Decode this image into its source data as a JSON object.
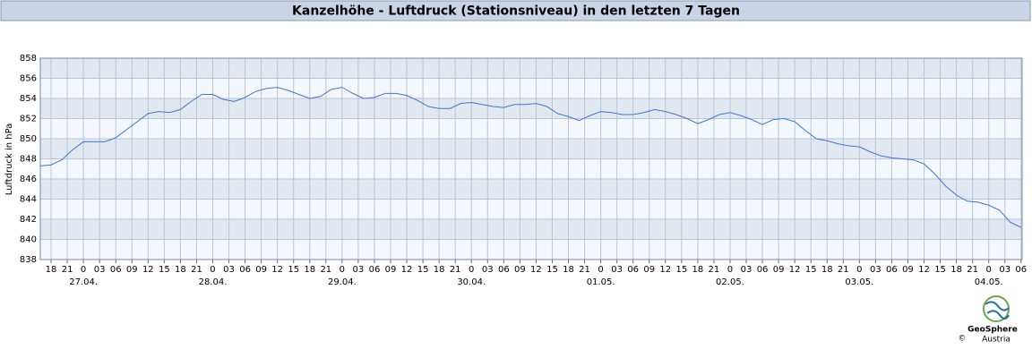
{
  "chart_data": {
    "type": "line",
    "title": "Kanzelhöhe - Luftdruck (Stationsniveau) in den letzten 7 Tagen",
    "ylabel": "Luftdruck in hPa",
    "color": "#3c78d8",
    "x": [
      -8,
      -6,
      -4,
      -2,
      0,
      2,
      4,
      6,
      8,
      10,
      12,
      14,
      16,
      18,
      20,
      22,
      24,
      26,
      28,
      30,
      32,
      34,
      36,
      38,
      40,
      42,
      44,
      46,
      48,
      50,
      52,
      54,
      56,
      58,
      60,
      62,
      64,
      66,
      68,
      70,
      72,
      74,
      76,
      78,
      80,
      82,
      84,
      86,
      88,
      90,
      92,
      94,
      96,
      98,
      100,
      102,
      104,
      106,
      108,
      110,
      112,
      114,
      116,
      118,
      120,
      122,
      124,
      126,
      128,
      130,
      132,
      134,
      136,
      138,
      140,
      142,
      144,
      146,
      148,
      150,
      152,
      154,
      156,
      158,
      160,
      162,
      164,
      166,
      168,
      170,
      172,
      174
    ],
    "values": [
      847.3,
      847.4,
      847.9,
      848.9,
      849.7,
      849.7,
      849.7,
      850.1,
      850.9,
      851.7,
      852.5,
      852.7,
      852.6,
      852.9,
      853.7,
      854.4,
      854.4,
      853.9,
      853.7,
      854.1,
      854.7,
      855.0,
      855.1,
      854.8,
      854.4,
      854.0,
      854.2,
      854.9,
      855.1,
      854.5,
      854.0,
      854.1,
      854.5,
      854.5,
      854.3,
      853.8,
      853.2,
      853.0,
      853.0,
      853.5,
      853.6,
      853.4,
      853.2,
      853.1,
      853.4,
      853.4,
      853.5,
      853.2,
      852.5,
      852.2,
      851.8,
      852.3,
      852.7,
      852.6,
      852.4,
      852.4,
      852.6,
      852.9,
      852.7,
      852.4,
      852.0,
      851.5,
      851.9,
      852.4,
      852.6,
      852.3,
      851.9,
      851.4,
      851.9,
      852.0,
      851.7,
      850.8,
      850.0,
      849.8,
      849.5,
      849.3,
      849.2,
      848.7,
      848.3,
      848.1,
      848.0,
      847.9,
      847.5,
      846.5,
      845.3,
      844.4,
      843.8,
      843.7,
      843.4,
      842.9,
      841.7,
      841.2
    ],
    "xlim": [
      -8,
      174.2
    ],
    "ylim": [
      838,
      858
    ],
    "yticks": [
      838,
      840,
      842,
      844,
      846,
      848,
      850,
      852,
      854,
      856,
      858
    ],
    "xticks": [
      {
        "value": -6,
        "label": "18"
      },
      {
        "value": -3,
        "label": "21"
      },
      {
        "value": 0,
        "label": "0"
      },
      {
        "value": 3,
        "label": "03"
      },
      {
        "value": 6,
        "label": "06"
      },
      {
        "value": 9,
        "label": "09"
      },
      {
        "value": 12,
        "label": "12"
      },
      {
        "value": 15,
        "label": "15"
      },
      {
        "value": 18,
        "label": "18"
      },
      {
        "value": 21,
        "label": "21"
      },
      {
        "value": 24,
        "label": "0"
      },
      {
        "value": 27,
        "label": "03"
      },
      {
        "value": 30,
        "label": "06"
      },
      {
        "value": 33,
        "label": "09"
      },
      {
        "value": 36,
        "label": "12"
      },
      {
        "value": 39,
        "label": "15"
      },
      {
        "value": 42,
        "label": "18"
      },
      {
        "value": 45,
        "label": "21"
      },
      {
        "value": 48,
        "label": "0"
      },
      {
        "value": 51,
        "label": "03"
      },
      {
        "value": 54,
        "label": "06"
      },
      {
        "value": 57,
        "label": "09"
      },
      {
        "value": 60,
        "label": "12"
      },
      {
        "value": 63,
        "label": "15"
      },
      {
        "value": 66,
        "label": "18"
      },
      {
        "value": 69,
        "label": "21"
      },
      {
        "value": 72,
        "label": "0"
      },
      {
        "value": 75,
        "label": "03"
      },
      {
        "value": 78,
        "label": "06"
      },
      {
        "value": 81,
        "label": "09"
      },
      {
        "value": 84,
        "label": "12"
      },
      {
        "value": 87,
        "label": "15"
      },
      {
        "value": 90,
        "label": "18"
      },
      {
        "value": 93,
        "label": "21"
      },
      {
        "value": 96,
        "label": "0"
      },
      {
        "value": 99,
        "label": "03"
      },
      {
        "value": 102,
        "label": "06"
      },
      {
        "value": 105,
        "label": "09"
      },
      {
        "value": 108,
        "label": "12"
      },
      {
        "value": 111,
        "label": "15"
      },
      {
        "value": 114,
        "label": "18"
      },
      {
        "value": 117,
        "label": "21"
      },
      {
        "value": 120,
        "label": "0"
      },
      {
        "value": 123,
        "label": "03"
      },
      {
        "value": 126,
        "label": "06"
      },
      {
        "value": 129,
        "label": "09"
      },
      {
        "value": 132,
        "label": "12"
      },
      {
        "value": 135,
        "label": "15"
      },
      {
        "value": 138,
        "label": "18"
      },
      {
        "value": 141,
        "label": "21"
      },
      {
        "value": 144,
        "label": "0"
      },
      {
        "value": 147,
        "label": "03"
      },
      {
        "value": 150,
        "label": "06"
      },
      {
        "value": 153,
        "label": "09"
      },
      {
        "value": 156,
        "label": "12"
      },
      {
        "value": 159,
        "label": "15"
      },
      {
        "value": 162,
        "label": "18"
      },
      {
        "value": 165,
        "label": "21"
      },
      {
        "value": 168,
        "label": "0"
      },
      {
        "value": 171,
        "label": "03"
      },
      {
        "value": 174,
        "label": "06"
      }
    ],
    "date_labels": [
      {
        "value": 0,
        "label": "27.04."
      },
      {
        "value": 24,
        "label": "28.04."
      },
      {
        "value": 48,
        "label": "29.04."
      },
      {
        "value": 72,
        "label": "30.04."
      },
      {
        "value": 96,
        "label": "01.05."
      },
      {
        "value": 120,
        "label": "02.05."
      },
      {
        "value": 144,
        "label": "03.05."
      },
      {
        "value": 168,
        "label": "04.05."
      }
    ],
    "grid": true
  },
  "logo": {
    "name": "GeoSphere",
    "sub": "Austria",
    "copyright": "©"
  }
}
